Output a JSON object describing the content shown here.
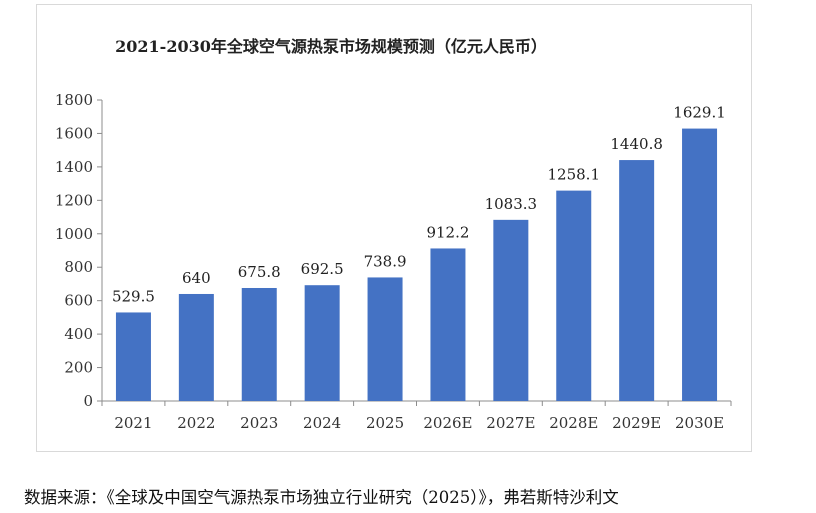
{
  "chart_data": {
    "type": "bar",
    "title": "2021-2030年全球空气源热泵市场规模预测（亿元人民币）",
    "categories": [
      "2021",
      "2022",
      "2023",
      "2024",
      "2025",
      "2026E",
      "2027E",
      "2028E",
      "2029E",
      "2030E"
    ],
    "values": [
      529.5,
      640,
      675.8,
      692.5,
      738.9,
      912.2,
      1083.3,
      1258.1,
      1440.8,
      1629.1
    ],
    "value_labels": [
      "529.5",
      "640",
      "675.8",
      "692.5",
      "738.9",
      "912.2",
      "1083.3",
      "1258.1",
      "1440.8",
      "1629.1"
    ],
    "yticks": [
      "0",
      "200",
      "400",
      "600",
      "800",
      "1000",
      "1200",
      "1400",
      "1600",
      "1800"
    ],
    "ylim": [
      0,
      1800
    ],
    "xlabel": "",
    "ylabel": "",
    "bar_color": "#4472c4",
    "grid": false,
    "legend": "none"
  },
  "source_note": "数据来源：《全球及中国空气源热泵市场独立行业研究（2025）》，弗若斯特沙利文"
}
